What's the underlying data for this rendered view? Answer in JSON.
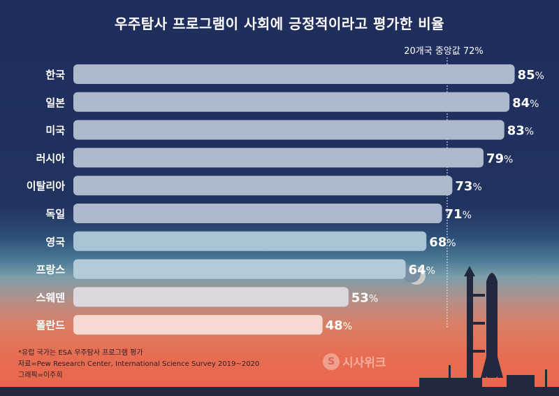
{
  "title": "우주탐사 프로그램이 사회에 긍정적이라고 평가한 비율",
  "median_label": "20개국 중앙값 72%",
  "notes": [
    "*유럽 국가는 ESA 우주탐사 프로그램 평가",
    "자료=Pew Research Center, International Science Survey 2019~2020",
    "그래픽=이주희"
  ],
  "logo": {
    "mark": "S",
    "text": "시사위크"
  },
  "chart_data": {
    "type": "bar",
    "orientation": "horizontal",
    "categories": [
      "한국",
      "일본",
      "미국",
      "러시아",
      "이탈리아",
      "독일",
      "영국",
      "프랑스",
      "스웨덴",
      "폴란드"
    ],
    "values": [
      85,
      84,
      83,
      79,
      73,
      71,
      68,
      64,
      53,
      48
    ],
    "value_suffix": "%",
    "median": 72,
    "xlim": [
      0,
      100
    ],
    "bar_colors": [
      "#adb9cd",
      "#adb9cd",
      "#adb9cd",
      "#adb9cd",
      "#adb9cd",
      "#adb9cd",
      "#a8c3d3",
      "#b3cad9",
      "#dcd6de",
      "#f7d9d2"
    ]
  }
}
